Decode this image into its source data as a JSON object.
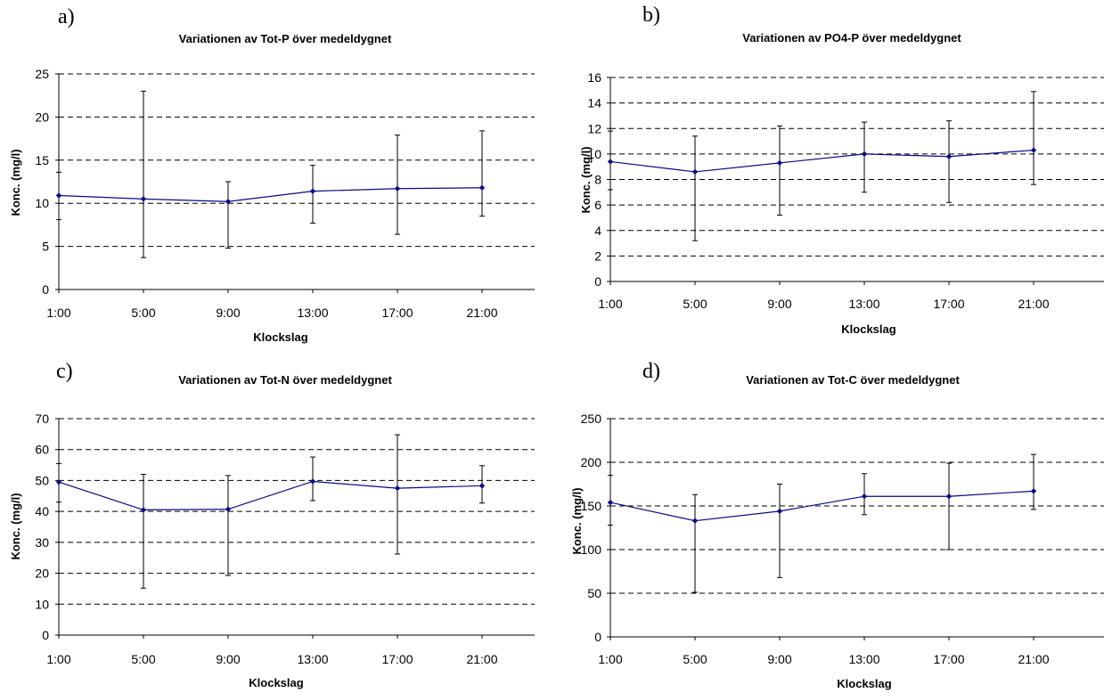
{
  "chart_data": [
    {
      "letter": "a)",
      "type": "line",
      "title": "Variationen av Tot-P över medeldygnet",
      "xlabel": "Klockslag",
      "ylabel": "Konc. (mg/l)",
      "categories": [
        "1:00",
        "5:00",
        "9:00",
        "13:00",
        "17:00",
        "21:00"
      ],
      "values": [
        10.9,
        10.5,
        10.2,
        11.4,
        11.7,
        11.8
      ],
      "error_low": [
        8.1,
        3.7,
        4.8,
        7.7,
        6.4,
        8.5
      ],
      "error_high": [
        13.6,
        23.0,
        12.5,
        14.4,
        17.9,
        18.4
      ],
      "ylim": [
        0,
        25
      ],
      "yticks": [
        0,
        5,
        10,
        15,
        20,
        25
      ],
      "grid": true,
      "colors": {
        "line": "#0a0a80",
        "marker": "#0a0a80",
        "errorbar": "#000000"
      }
    },
    {
      "letter": "b)",
      "type": "line",
      "title": "Variationen av PO4-P över medeldygnet",
      "xlabel": "Klockslag",
      "ylabel": "Konc. (mg/l)",
      "categories": [
        "1:00",
        "5:00",
        "9:00",
        "13:00",
        "17:00",
        "21:00"
      ],
      "values": [
        9.4,
        8.6,
        9.3,
        10.0,
        9.8,
        10.3
      ],
      "error_low": [
        7.2,
        3.2,
        5.2,
        7.0,
        6.2,
        7.6
      ],
      "error_high": [
        11.8,
        11.4,
        12.2,
        12.5,
        12.6,
        14.9
      ],
      "ylim": [
        0,
        16
      ],
      "yticks": [
        0,
        2,
        4,
        6,
        8,
        10,
        12,
        14,
        16
      ],
      "grid": true,
      "colors": {
        "line": "#0a0a80",
        "marker": "#0a0a80",
        "errorbar": "#000000"
      }
    },
    {
      "letter": "c)",
      "type": "line",
      "title": "Variationen av Tot-N över medeldygnet",
      "xlabel": "Klockslag",
      "ylabel": "Konc. (mg/l)",
      "categories": [
        "1:00",
        "5:00",
        "9:00",
        "13:00",
        "17:00",
        "21:00"
      ],
      "values": [
        49.5,
        40.5,
        40.7,
        49.7,
        47.5,
        48.3
      ],
      "error_low": [
        43.0,
        15.2,
        19.3,
        43.5,
        26.2,
        42.7
      ],
      "error_high": [
        55.5,
        52.0,
        51.6,
        57.6,
        64.8,
        54.8
      ],
      "ylim": [
        0,
        70
      ],
      "yticks": [
        0,
        10,
        20,
        30,
        40,
        50,
        60,
        70
      ],
      "grid": true,
      "colors": {
        "line": "#0a0a80",
        "marker": "#0a0a80",
        "errorbar": "#000000"
      }
    },
    {
      "letter": "d)",
      "type": "line",
      "title": "Variationen av Tot-C över medeldygnet",
      "xlabel": "Klockslag",
      "ylabel": "Konc. (mg/l)",
      "categories": [
        "1:00",
        "5:00",
        "9:00",
        "13:00",
        "17:00",
        "21:00"
      ],
      "values": [
        154,
        133,
        144,
        161,
        161,
        167
      ],
      "error_low": [
        128,
        51,
        68,
        140,
        100,
        146
      ],
      "error_high": [
        185,
        163,
        175,
        187,
        199,
        209
      ],
      "ylim": [
        0,
        250
      ],
      "yticks": [
        0,
        50,
        100,
        150,
        200,
        250
      ],
      "grid": true,
      "colors": {
        "line": "#0a0a80",
        "marker": "#0a0a80",
        "errorbar": "#000000"
      }
    }
  ]
}
